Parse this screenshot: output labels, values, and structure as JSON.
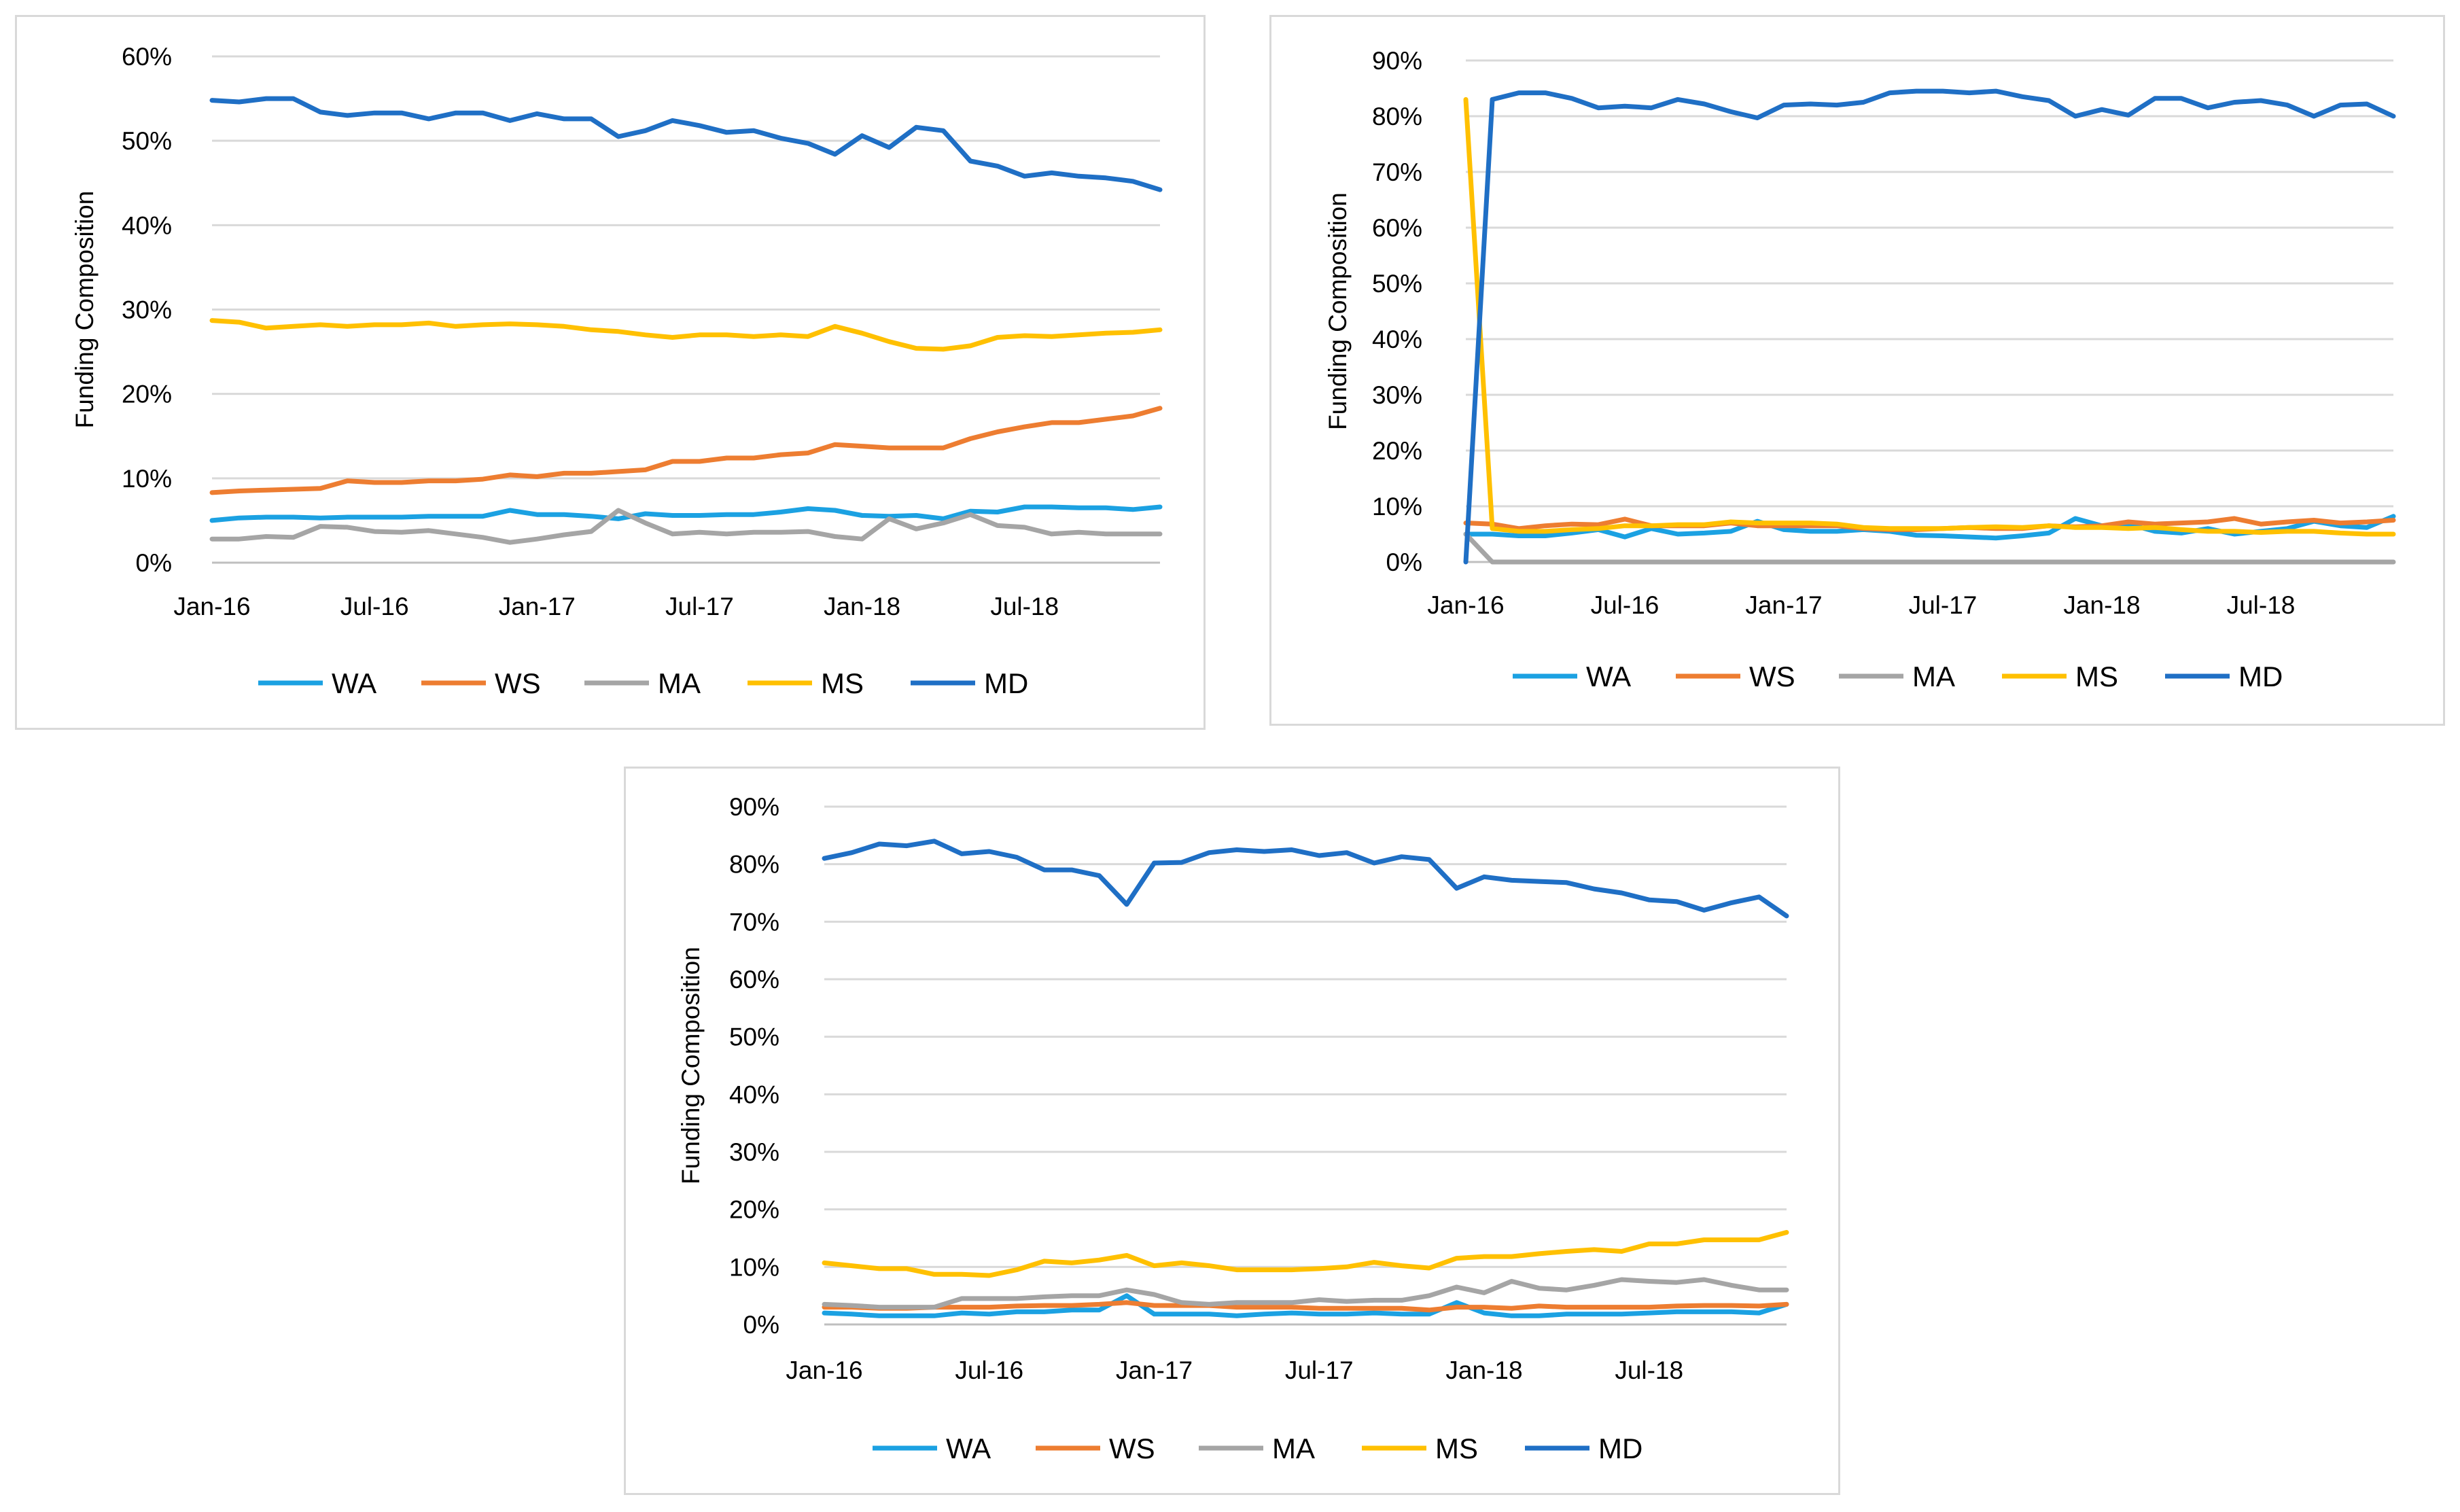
{
  "chart_data": [
    {
      "type": "line",
      "ylabel": "Funding Composition",
      "xlabel": "",
      "ylim": [
        0,
        0.6
      ],
      "yticks": [
        "0%",
        "10%",
        "20%",
        "30%",
        "40%",
        "50%",
        "60%"
      ],
      "xtick_labels": [
        "Jan-16",
        "Jul-16",
        "Jan-17",
        "Jul-17",
        "Jan-18",
        "Jul-18"
      ],
      "x_start": "Jan-16",
      "x_end": "Dec-18",
      "grid": true,
      "legend_position": "bottom",
      "series": [
        {
          "name": "WA",
          "color": "#1ba1e2",
          "values": [
            0.05,
            0.053,
            0.054,
            0.054,
            0.053,
            0.054,
            0.054,
            0.054,
            0.055,
            0.055,
            0.055,
            0.062,
            0.057,
            0.057,
            0.055,
            0.052,
            0.058,
            0.056,
            0.056,
            0.057,
            0.057,
            0.06,
            0.064,
            0.062,
            0.056,
            0.055,
            0.056,
            0.052,
            0.061,
            0.06,
            0.066,
            0.066,
            0.065,
            0.065,
            0.063,
            0.066
          ]
        },
        {
          "name": "WS",
          "color": "#ed7d31",
          "values": [
            0.083,
            0.085,
            0.086,
            0.087,
            0.088,
            0.097,
            0.095,
            0.095,
            0.097,
            0.097,
            0.099,
            0.104,
            0.102,
            0.106,
            0.106,
            0.108,
            0.11,
            0.12,
            0.12,
            0.124,
            0.124,
            0.128,
            0.13,
            0.14,
            0.138,
            0.136,
            0.136,
            0.136,
            0.147,
            0.155,
            0.161,
            0.166,
            0.166,
            0.17,
            0.174,
            0.183
          ]
        },
        {
          "name": "MA",
          "color": "#a5a5a5",
          "values": [
            0.028,
            0.028,
            0.031,
            0.03,
            0.043,
            0.042,
            0.037,
            0.036,
            0.038,
            0.034,
            0.03,
            0.024,
            0.028,
            0.033,
            0.037,
            0.062,
            0.047,
            0.034,
            0.036,
            0.034,
            0.036,
            0.036,
            0.037,
            0.031,
            0.028,
            0.052,
            0.04,
            0.047,
            0.057,
            0.044,
            0.042,
            0.034,
            0.036,
            0.034,
            0.034,
            0.034
          ]
        },
        {
          "name": "MS",
          "color": "#ffc000",
          "values": [
            0.287,
            0.285,
            0.278,
            0.28,
            0.282,
            0.28,
            0.282,
            0.282,
            0.284,
            0.28,
            0.282,
            0.283,
            0.282,
            0.28,
            0.276,
            0.274,
            0.27,
            0.267,
            0.27,
            0.27,
            0.268,
            0.27,
            0.268,
            0.28,
            0.272,
            0.262,
            0.254,
            0.253,
            0.257,
            0.267,
            0.269,
            0.268,
            0.27,
            0.272,
            0.273,
            0.276
          ]
        },
        {
          "name": "MD",
          "color": "#1f6fc5",
          "values": [
            0.548,
            0.546,
            0.55,
            0.55,
            0.534,
            0.53,
            0.533,
            0.533,
            0.526,
            0.533,
            0.533,
            0.524,
            0.532,
            0.526,
            0.526,
            0.505,
            0.512,
            0.524,
            0.518,
            0.51,
            0.512,
            0.503,
            0.497,
            0.484,
            0.506,
            0.492,
            0.516,
            0.512,
            0.476,
            0.47,
            0.458,
            0.462,
            0.458,
            0.456,
            0.452,
            0.442
          ]
        }
      ]
    },
    {
      "type": "line",
      "ylabel": "Funding Composition",
      "xlabel": "",
      "ylim": [
        0,
        0.9
      ],
      "yticks": [
        "0%",
        "10%",
        "20%",
        "30%",
        "40%",
        "50%",
        "60%",
        "70%",
        "80%",
        "90%"
      ],
      "xtick_labels": [
        "Jan-16",
        "Jul-16",
        "Jan-17",
        "Jul-17",
        "Jan-18",
        "Jul-18"
      ],
      "x_start": "Jan-16",
      "x_end": "Dec-18",
      "grid": true,
      "legend_position": "bottom",
      "series": [
        {
          "name": "WA",
          "color": "#1ba1e2",
          "values": [
            0.05,
            0.05,
            0.047,
            0.047,
            0.052,
            0.058,
            0.045,
            0.06,
            0.05,
            0.052,
            0.055,
            0.073,
            0.058,
            0.055,
            0.055,
            0.058,
            0.055,
            0.048,
            0.047,
            0.045,
            0.043,
            0.047,
            0.052,
            0.078,
            0.065,
            0.068,
            0.055,
            0.052,
            0.06,
            0.05,
            0.055,
            0.06,
            0.073,
            0.065,
            0.062,
            0.082
          ]
        },
        {
          "name": "WS",
          "color": "#ed7d31",
          "values": [
            0.07,
            0.068,
            0.06,
            0.065,
            0.068,
            0.067,
            0.077,
            0.065,
            0.065,
            0.065,
            0.07,
            0.065,
            0.065,
            0.065,
            0.065,
            0.06,
            0.058,
            0.058,
            0.06,
            0.062,
            0.06,
            0.06,
            0.065,
            0.063,
            0.065,
            0.072,
            0.068,
            0.07,
            0.072,
            0.078,
            0.068,
            0.072,
            0.075,
            0.07,
            0.072,
            0.075
          ]
        },
        {
          "name": "MA",
          "color": "#a5a5a5",
          "values": [
            0.05,
            0.0,
            0.0,
            0.0,
            0.0,
            0.0,
            0.0,
            0.0,
            0.0,
            0.0,
            0.0,
            0.0,
            0.0,
            0.0,
            0.0,
            0.0,
            0.0,
            0.0,
            0.0,
            0.0,
            0.0,
            0.0,
            0.0,
            0.0,
            0.0,
            0.0,
            0.0,
            0.0,
            0.0,
            0.0,
            0.0,
            0.0,
            0.0,
            0.0,
            0.0,
            0.0
          ]
        },
        {
          "name": "MS",
          "color": "#ffc000",
          "values": [
            0.83,
            0.06,
            0.055,
            0.055,
            0.058,
            0.06,
            0.065,
            0.065,
            0.067,
            0.067,
            0.072,
            0.07,
            0.07,
            0.07,
            0.068,
            0.062,
            0.06,
            0.06,
            0.06,
            0.062,
            0.063,
            0.062,
            0.065,
            0.062,
            0.062,
            0.06,
            0.062,
            0.058,
            0.055,
            0.055,
            0.053,
            0.055,
            0.055,
            0.052,
            0.05,
            0.05
          ]
        },
        {
          "name": "MD",
          "color": "#1f6fc5",
          "values": [
            0.0,
            0.83,
            0.842,
            0.842,
            0.832,
            0.815,
            0.818,
            0.815,
            0.83,
            0.822,
            0.808,
            0.797,
            0.82,
            0.822,
            0.82,
            0.825,
            0.842,
            0.845,
            0.845,
            0.842,
            0.845,
            0.835,
            0.828,
            0.8,
            0.812,
            0.802,
            0.832,
            0.832,
            0.815,
            0.825,
            0.828,
            0.82,
            0.8,
            0.82,
            0.822,
            0.8
          ]
        }
      ]
    },
    {
      "type": "line",
      "ylabel": "Funding Composition",
      "xlabel": "",
      "ylim": [
        0,
        0.9
      ],
      "yticks": [
        "0%",
        "10%",
        "20%",
        "30%",
        "40%",
        "50%",
        "60%",
        "70%",
        "80%",
        "90%"
      ],
      "xtick_labels": [
        "Jan-16",
        "Jul-16",
        "Jan-17",
        "Jul-17",
        "Jan-18",
        "Jul-18"
      ],
      "x_start": "Jan-16",
      "x_end": "Dec-18",
      "grid": true,
      "legend_position": "bottom",
      "series": [
        {
          "name": "WA",
          "color": "#1ba1e2",
          "values": [
            0.02,
            0.018,
            0.015,
            0.015,
            0.015,
            0.02,
            0.018,
            0.022,
            0.022,
            0.025,
            0.025,
            0.05,
            0.018,
            0.018,
            0.018,
            0.015,
            0.018,
            0.02,
            0.018,
            0.018,
            0.02,
            0.018,
            0.018,
            0.038,
            0.02,
            0.015,
            0.015,
            0.018,
            0.018,
            0.018,
            0.02,
            0.022,
            0.022,
            0.022,
            0.02,
            0.035
          ]
        },
        {
          "name": "WS",
          "color": "#ed7d31",
          "values": [
            0.03,
            0.03,
            0.028,
            0.028,
            0.03,
            0.03,
            0.03,
            0.032,
            0.033,
            0.033,
            0.035,
            0.038,
            0.033,
            0.033,
            0.033,
            0.03,
            0.03,
            0.03,
            0.028,
            0.028,
            0.028,
            0.028,
            0.025,
            0.03,
            0.03,
            0.028,
            0.032,
            0.03,
            0.03,
            0.03,
            0.03,
            0.032,
            0.033,
            0.033,
            0.032,
            0.035
          ]
        },
        {
          "name": "MA",
          "color": "#a5a5a5",
          "values": [
            0.035,
            0.033,
            0.03,
            0.03,
            0.03,
            0.045,
            0.045,
            0.045,
            0.048,
            0.05,
            0.05,
            0.06,
            0.052,
            0.038,
            0.035,
            0.038,
            0.038,
            0.038,
            0.043,
            0.04,
            0.042,
            0.042,
            0.05,
            0.065,
            0.055,
            0.075,
            0.063,
            0.06,
            0.068,
            0.078,
            0.075,
            0.073,
            0.078,
            0.068,
            0.06,
            0.06
          ]
        },
        {
          "name": "MS",
          "color": "#ffc000",
          "values": [
            0.107,
            0.102,
            0.097,
            0.097,
            0.087,
            0.087,
            0.085,
            0.095,
            0.11,
            0.107,
            0.112,
            0.12,
            0.102,
            0.107,
            0.102,
            0.095,
            0.095,
            0.095,
            0.097,
            0.1,
            0.108,
            0.102,
            0.098,
            0.115,
            0.118,
            0.118,
            0.123,
            0.127,
            0.13,
            0.127,
            0.14,
            0.14,
            0.147,
            0.147,
            0.147,
            0.16
          ]
        },
        {
          "name": "MD",
          "color": "#1f6fc5",
          "values": [
            0.81,
            0.82,
            0.835,
            0.832,
            0.84,
            0.818,
            0.822,
            0.812,
            0.79,
            0.79,
            0.78,
            0.73,
            0.802,
            0.803,
            0.82,
            0.825,
            0.822,
            0.825,
            0.815,
            0.82,
            0.802,
            0.813,
            0.808,
            0.758,
            0.778,
            0.772,
            0.77,
            0.768,
            0.757,
            0.75,
            0.738,
            0.735,
            0.72,
            0.733,
            0.743,
            0.71
          ]
        }
      ]
    }
  ]
}
